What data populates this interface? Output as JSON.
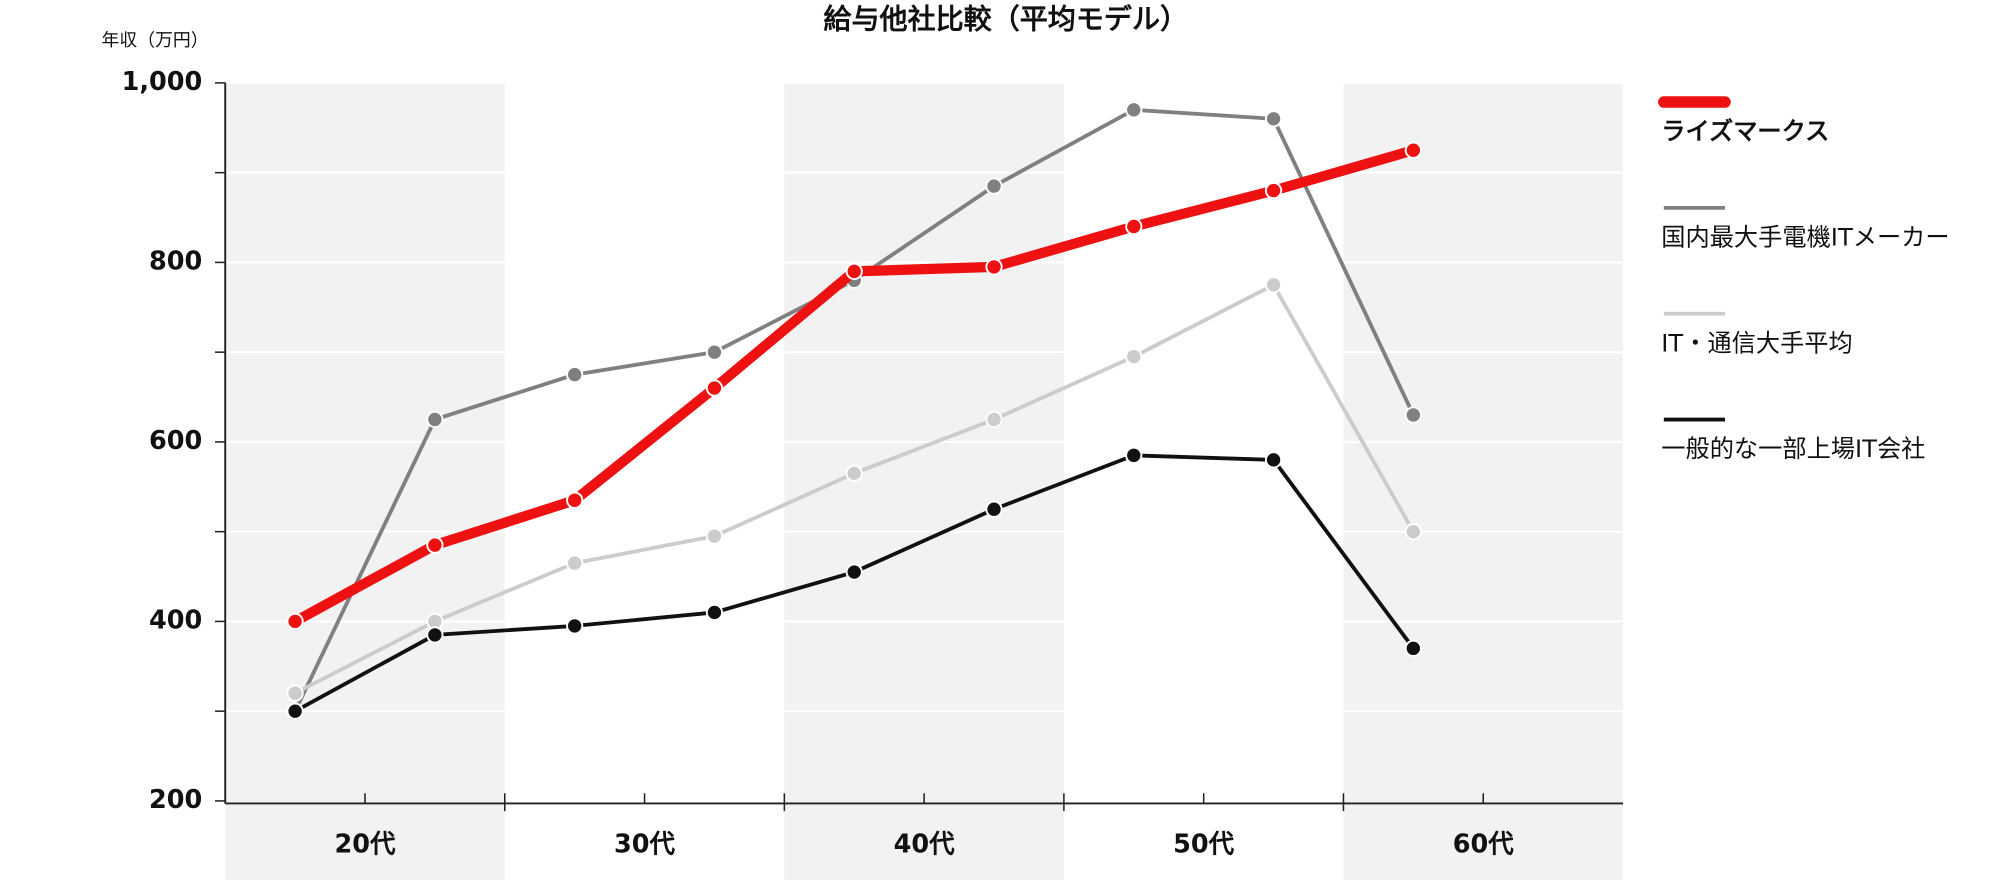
{
  "chart_data": {
    "type": "line",
    "title": "給与他社比較（平均モデル）",
    "y_label": "年収（万円）",
    "x": [
      22.5,
      27.5,
      32.5,
      37.5,
      42.5,
      47.5,
      52.5,
      57.5,
      62.5
    ],
    "xlim": [
      20,
      70
    ],
    "xticks": [
      {
        "value": 25,
        "label": "20代"
      },
      {
        "value": 35,
        "label": "30代"
      },
      {
        "value": 45,
        "label": "40代"
      },
      {
        "value": 55,
        "label": "50代"
      },
      {
        "value": 65,
        "label": "60代"
      }
    ],
    "ylim": [
      200,
      1000
    ],
    "yticks": [
      {
        "value": 200,
        "label": "200"
      },
      {
        "value": 400,
        "label": "400"
      },
      {
        "value": 600,
        "label": "600"
      },
      {
        "value": 800,
        "label": "800"
      },
      {
        "value": 1000,
        "label": "1,000"
      }
    ],
    "yminor_ticks": [
      300,
      500,
      700,
      900
    ],
    "grid": true,
    "legend": "right",
    "series": [
      {
        "name": "国内最大手電機ITメーカー",
        "color": "#808080",
        "values": [
          300,
          625,
          675,
          700,
          780,
          885,
          970,
          960,
          630
        ]
      },
      {
        "name": "IT・通信大手平均",
        "color": "#cccccc",
        "values": [
          320,
          400,
          465,
          495,
          565,
          625,
          695,
          775,
          500
        ]
      },
      {
        "name": "一般的な一部上場IT会社",
        "color": "#111111",
        "values": [
          300,
          385,
          395,
          410,
          455,
          525,
          585,
          580,
          370
        ]
      },
      {
        "name": "ライズマークス",
        "color": "#ee1111",
        "values": [
          400,
          485,
          535,
          660,
          790,
          795,
          840,
          880,
          925
        ]
      }
    ]
  }
}
